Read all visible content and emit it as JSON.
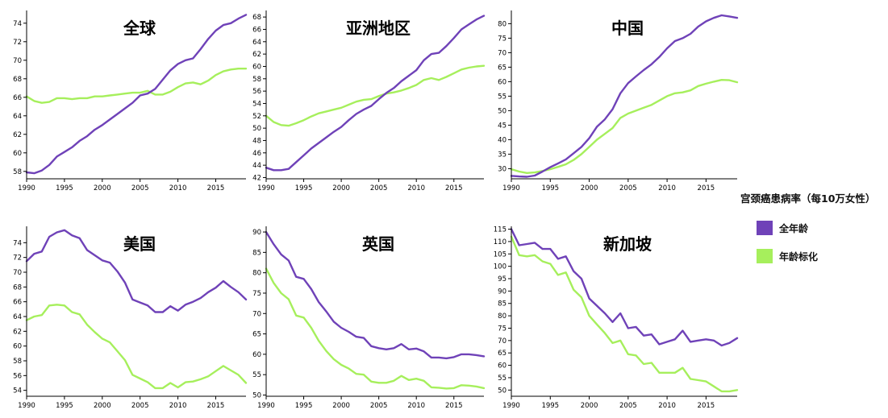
{
  "legend": {
    "title": "宫颈癌患病率（每10万女性）",
    "items": [
      {
        "label": "全年龄",
        "color": "#6f42b8"
      },
      {
        "label": "年龄标化",
        "color": "#a6ef5c"
      }
    ]
  },
  "chart_data": [
    {
      "type": "line",
      "title": "全球",
      "x": [
        1990,
        1991,
        1992,
        1993,
        1994,
        1995,
        1996,
        1997,
        1998,
        1999,
        2000,
        2001,
        2002,
        2003,
        2004,
        2005,
        2006,
        2007,
        2008,
        2009,
        2010,
        2011,
        2012,
        2013,
        2014,
        2015,
        2016,
        2017,
        2018,
        2019
      ],
      "xticks": [
        1990,
        1995,
        2000,
        2005,
        2010,
        2015
      ],
      "yticks": [
        58,
        60,
        62,
        64,
        66,
        68,
        70,
        72,
        74
      ],
      "xlim": [
        1990,
        2019
      ],
      "ylim": [
        57.2,
        75.2
      ],
      "series": [
        {
          "name": "全年龄",
          "color": "#6f42b8",
          "values": [
            57.9,
            57.8,
            58.1,
            58.7,
            59.6,
            60.1,
            60.6,
            61.3,
            61.8,
            62.5,
            63.0,
            63.6,
            64.2,
            64.8,
            65.4,
            66.2,
            66.4,
            66.9,
            67.9,
            68.9,
            69.6,
            70.0,
            70.2,
            71.2,
            72.3,
            73.2,
            73.8,
            74.0,
            74.5,
            74.9
          ]
        },
        {
          "name": "年龄标化",
          "color": "#a6ef5c",
          "values": [
            66.1,
            65.6,
            65.4,
            65.5,
            65.9,
            65.9,
            65.8,
            65.9,
            65.9,
            66.1,
            66.1,
            66.2,
            66.3,
            66.4,
            66.5,
            66.5,
            66.7,
            66.3,
            66.3,
            66.6,
            67.1,
            67.5,
            67.6,
            67.4,
            67.8,
            68.4,
            68.8,
            69.0,
            69.1,
            69.1
          ]
        }
      ]
    },
    {
      "type": "line",
      "title": "亚洲地区",
      "x": [
        1990,
        1991,
        1992,
        1993,
        1994,
        1995,
        1996,
        1997,
        1998,
        1999,
        2000,
        2001,
        2002,
        2003,
        2004,
        2005,
        2006,
        2007,
        2008,
        2009,
        2010,
        2011,
        2012,
        2013,
        2014,
        2015,
        2016,
        2017,
        2018,
        2019
      ],
      "xticks": [
        1990,
        1995,
        2000,
        2005,
        2010,
        2015
      ],
      "yticks": [
        42,
        44,
        46,
        48,
        50,
        52,
        54,
        56,
        58,
        60,
        62,
        64,
        66,
        68
      ],
      "xlim": [
        1990,
        2019
      ],
      "ylim": [
        41.8,
        68.8
      ],
      "series": [
        {
          "name": "全年龄",
          "color": "#6f42b8",
          "values": [
            43.6,
            43.2,
            43.2,
            43.4,
            44.5,
            45.6,
            46.7,
            47.6,
            48.5,
            49.4,
            50.2,
            51.3,
            52.3,
            53.0,
            53.6,
            54.7,
            55.7,
            56.5,
            57.6,
            58.5,
            59.4,
            61.0,
            62.0,
            62.2,
            63.3,
            64.6,
            66.0,
            66.8,
            67.6,
            68.2
          ]
        },
        {
          "name": "年龄标化",
          "color": "#a6ef5c",
          "values": [
            52.0,
            51.0,
            50.5,
            50.4,
            50.8,
            51.3,
            51.9,
            52.4,
            52.7,
            53.0,
            53.3,
            53.8,
            54.3,
            54.6,
            54.7,
            55.2,
            55.6,
            55.8,
            56.1,
            56.5,
            57.0,
            57.8,
            58.1,
            57.8,
            58.3,
            58.9,
            59.5,
            59.8,
            60.0,
            60.1
          ]
        }
      ]
    },
    {
      "type": "line",
      "title": "中国",
      "x": [
        1990,
        1991,
        1992,
        1993,
        1994,
        1995,
        1996,
        1997,
        1998,
        1999,
        2000,
        2001,
        2002,
        2003,
        2004,
        2005,
        2006,
        2007,
        2008,
        2009,
        2010,
        2011,
        2012,
        2013,
        2014,
        2015,
        2016,
        2017,
        2018,
        2019
      ],
      "xticks": [
        1990,
        1995,
        2000,
        2005,
        2010,
        2015
      ],
      "yticks": [
        30,
        35,
        40,
        45,
        50,
        55,
        60,
        65,
        70,
        75,
        80
      ],
      "xlim": [
        1990,
        2019
      ],
      "ylim": [
        26.5,
        84
      ],
      "series": [
        {
          "name": "全年龄",
          "color": "#6f42b8",
          "values": [
            27.5,
            27.3,
            27.2,
            27.6,
            29.0,
            30.5,
            31.8,
            33.2,
            35.3,
            37.5,
            40.5,
            44.5,
            47.0,
            50.5,
            56.0,
            59.5,
            61.8,
            64.0,
            66.0,
            68.5,
            71.5,
            74.0,
            75.0,
            76.5,
            79.0,
            80.8,
            82.0,
            82.9,
            82.5,
            82.0
          ]
        },
        {
          "name": "年龄标化",
          "color": "#a6ef5c",
          "values": [
            29.8,
            29.0,
            28.5,
            28.7,
            29.2,
            29.8,
            30.6,
            31.5,
            33.0,
            35.0,
            37.5,
            40.0,
            42.0,
            44.0,
            47.5,
            49.0,
            50.0,
            51.0,
            52.0,
            53.5,
            55.0,
            56.0,
            56.3,
            57.0,
            58.5,
            59.3,
            60.0,
            60.6,
            60.5,
            59.8
          ]
        }
      ]
    },
    {
      "type": "line",
      "title": "美国",
      "x": [
        1990,
        1991,
        1992,
        1993,
        1994,
        1995,
        1996,
        1997,
        1998,
        1999,
        2000,
        2001,
        2002,
        2003,
        2004,
        2005,
        2006,
        2007,
        2008,
        2009,
        2010,
        2011,
        2012,
        2013,
        2014,
        2015,
        2016,
        2017,
        2018,
        2019
      ],
      "xticks": [
        1990,
        1995,
        2000,
        2005,
        2010,
        2015
      ],
      "yticks": [
        54,
        56,
        58,
        60,
        62,
        64,
        66,
        68,
        70,
        72,
        74
      ],
      "xlim": [
        1990,
        2019
      ],
      "ylim": [
        53.2,
        76
      ],
      "series": [
        {
          "name": "全年龄",
          "color": "#6f42b8",
          "values": [
            71.5,
            72.5,
            72.8,
            74.8,
            75.4,
            75.7,
            75.0,
            74.6,
            73.0,
            72.3,
            71.6,
            71.3,
            70.1,
            68.6,
            66.3,
            65.9,
            65.5,
            64.6,
            64.6,
            65.4,
            64.8,
            65.6,
            66.0,
            66.5,
            67.3,
            67.9,
            68.8,
            68.0,
            67.3,
            66.3
          ]
        },
        {
          "name": "年龄标化",
          "color": "#a6ef5c",
          "values": [
            63.5,
            64.0,
            64.2,
            65.5,
            65.6,
            65.5,
            64.6,
            64.3,
            62.9,
            61.9,
            61.0,
            60.5,
            59.3,
            58.1,
            56.1,
            55.6,
            55.1,
            54.3,
            54.3,
            55.0,
            54.4,
            55.1,
            55.2,
            55.5,
            55.9,
            56.6,
            57.3,
            56.7,
            56.1,
            55.0
          ]
        }
      ]
    },
    {
      "type": "line",
      "title": "英国",
      "x": [
        1990,
        1991,
        1992,
        1993,
        1994,
        1995,
        1996,
        1997,
        1998,
        1999,
        2000,
        2001,
        2002,
        2003,
        2004,
        2005,
        2006,
        2007,
        2008,
        2009,
        2010,
        2011,
        2012,
        2013,
        2014,
        2015,
        2016,
        2017,
        2018,
        2019
      ],
      "xticks": [
        1990,
        1995,
        2000,
        2005,
        2010,
        2015
      ],
      "yticks": [
        50,
        55,
        60,
        65,
        70,
        75,
        80,
        85,
        90
      ],
      "xlim": [
        1990,
        2019
      ],
      "ylim": [
        49.7,
        91
      ],
      "series": [
        {
          "name": "全年龄",
          "color": "#6f42b8",
          "values": [
            90.0,
            87.0,
            84.5,
            83.0,
            79.0,
            78.5,
            76.0,
            72.8,
            70.5,
            68.0,
            66.5,
            65.5,
            64.3,
            64.0,
            62.0,
            61.5,
            61.2,
            61.5,
            62.5,
            61.2,
            61.4,
            60.7,
            59.2,
            59.2,
            59.0,
            59.3,
            60.0,
            60.0,
            59.8,
            59.5
          ]
        },
        {
          "name": "年龄标化",
          "color": "#a6ef5c",
          "values": [
            81.0,
            77.5,
            75.0,
            73.5,
            69.5,
            69.0,
            66.5,
            63.3,
            60.8,
            58.8,
            57.4,
            56.5,
            55.2,
            55.0,
            53.3,
            53.0,
            53.0,
            53.5,
            54.7,
            53.7,
            54.0,
            53.5,
            51.9,
            51.8,
            51.6,
            51.7,
            52.4,
            52.3,
            52.1,
            51.7
          ]
        }
      ]
    },
    {
      "type": "line",
      "title": "新加坡",
      "x": [
        1990,
        1991,
        1992,
        1993,
        1994,
        1995,
        1996,
        1997,
        1998,
        1999,
        2000,
        2001,
        2002,
        2003,
        2004,
        2005,
        2006,
        2007,
        2008,
        2009,
        2010,
        2011,
        2012,
        2013,
        2014,
        2015,
        2016,
        2017,
        2018,
        2019
      ],
      "xticks": [
        1990,
        1995,
        2000,
        2005,
        2010,
        2015
      ],
      "yticks": [
        50,
        55,
        60,
        65,
        70,
        75,
        80,
        85,
        90,
        95,
        100,
        105,
        110,
        115
      ],
      "xlim": [
        1990,
        2019
      ],
      "ylim": [
        47.5,
        115.5
      ],
      "series": [
        {
          "name": "全年龄",
          "color": "#6f42b8",
          "values": [
            115.0,
            108.5,
            109.0,
            109.5,
            107.0,
            107.0,
            103.0,
            104.0,
            98.0,
            95.0,
            87.0,
            84.0,
            81.0,
            77.5,
            81.0,
            75.0,
            75.5,
            72.0,
            72.5,
            68.5,
            69.5,
            70.5,
            74.0,
            69.5,
            70.0,
            70.5,
            70.0,
            68.0,
            69.0,
            71.0
          ]
        },
        {
          "name": "年龄标化",
          "color": "#a6ef5c",
          "values": [
            112.0,
            104.5,
            104.0,
            104.5,
            102.0,
            101.0,
            96.5,
            97.5,
            90.5,
            87.5,
            80.0,
            76.5,
            73.0,
            69.0,
            70.0,
            64.5,
            64.0,
            60.5,
            61.0,
            57.0,
            57.0,
            57.0,
            59.0,
            54.5,
            54.0,
            53.5,
            51.5,
            49.5,
            49.5,
            50.0
          ]
        }
      ]
    }
  ]
}
